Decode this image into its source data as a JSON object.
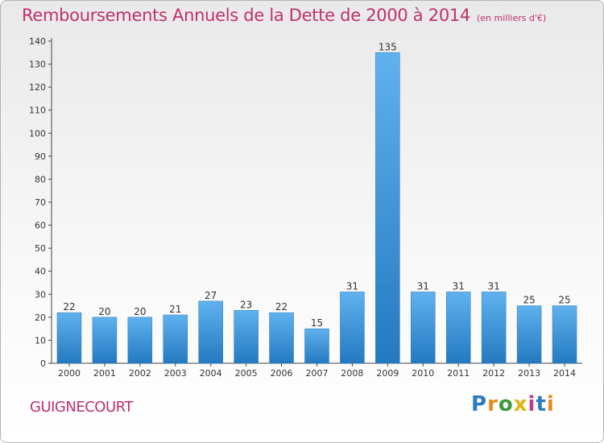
{
  "title": "Remboursements Annuels de la Dette de 2000 à 2014",
  "unit_note": "(en milliers d'€)",
  "commune": "GUIGNECOURT",
  "logo": {
    "name": "Proxiti",
    "colors": [
      "#2b7bc0",
      "#e58b1e",
      "#3c9a3a",
      "#e0b414",
      "#c43a86",
      "#2b7bc0",
      "#e58b1e"
    ]
  },
  "chart_data": {
    "type": "bar",
    "title": "Remboursements Annuels de la Dette de 2000 à 2014",
    "categories": [
      "2000",
      "2001",
      "2002",
      "2003",
      "2004",
      "2005",
      "2006",
      "2007",
      "2008",
      "2009",
      "2010",
      "2011",
      "2012",
      "2013",
      "2014"
    ],
    "values": [
      22,
      20,
      20,
      21,
      27,
      23,
      22,
      15,
      31,
      135,
      31,
      31,
      31,
      25,
      25
    ],
    "ylim": [
      0,
      140
    ],
    "yticks": [
      0,
      10,
      20,
      30,
      40,
      50,
      60,
      70,
      80,
      90,
      100,
      110,
      120,
      130,
      140
    ],
    "xlabel": "",
    "ylabel": "",
    "grid": false,
    "bar_color": "#3d97dc"
  }
}
